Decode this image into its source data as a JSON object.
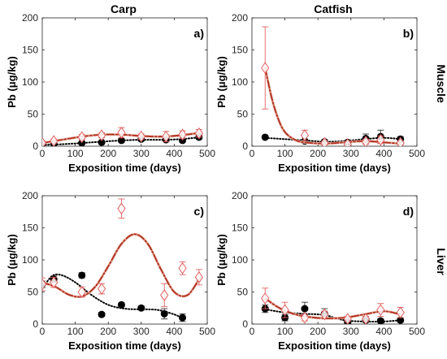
{
  "figure": {
    "column_titles": [
      "Carp",
      "Catfish"
    ],
    "row_labels": [
      "Muscle",
      "Liver"
    ]
  },
  "chart_data": [
    {
      "type": "scatter",
      "panel_label": "a)",
      "title": "Carp",
      "xlabel": "Exposition time (days)",
      "ylabel": "Pb (μg/kg)",
      "xlim": [
        0,
        500
      ],
      "ylim": [
        0,
        200
      ],
      "xticks": [
        0,
        100,
        200,
        300,
        400,
        500
      ],
      "yticks": [
        0,
        50,
        100,
        150,
        200
      ],
      "series": [
        {
          "marker": "filled-circle",
          "color": "#000000",
          "points": [
            {
              "x": 0,
              "y": 3,
              "err": 2
            },
            {
              "x": 35,
              "y": 4,
              "err": 2
            },
            {
              "x": 120,
              "y": 5,
              "err": 2
            },
            {
              "x": 180,
              "y": 6,
              "err": 2
            },
            {
              "x": 240,
              "y": 9,
              "err": 3
            },
            {
              "x": 300,
              "y": 11,
              "err": 3
            },
            {
              "x": 375,
              "y": 10,
              "err": 3
            },
            {
              "x": 425,
              "y": 9,
              "err": 3
            },
            {
              "x": 475,
              "y": 14,
              "err": 3
            }
          ],
          "fit": {
            "style": "dotted",
            "color": "#000000",
            "x": [
              0,
              60,
              120,
              180,
              240,
              300,
              360,
              420,
              480
            ],
            "y": [
              2,
              3,
              5,
              7,
              9,
              10,
              10,
              11,
              14
            ]
          }
        },
        {
          "marker": "open-diamond",
          "color": "#e06060",
          "points": [
            {
              "x": 0,
              "y": 5,
              "err": 3
            },
            {
              "x": 35,
              "y": 8,
              "err": 3
            },
            {
              "x": 120,
              "y": 14,
              "err": 4
            },
            {
              "x": 180,
              "y": 17,
              "err": 4
            },
            {
              "x": 240,
              "y": 21,
              "err": 8
            },
            {
              "x": 300,
              "y": 15,
              "err": 4
            },
            {
              "x": 375,
              "y": 15,
              "err": 8
            },
            {
              "x": 425,
              "y": 18,
              "err": 6
            },
            {
              "x": 475,
              "y": 20,
              "err": 6
            }
          ],
          "fit": {
            "style": "dash-dot",
            "color": "#b03020",
            "x": [
              0,
              60,
              120,
              180,
              240,
              300,
              360,
              420,
              480
            ],
            "y": [
              5,
              10,
              15,
              18,
              18,
              16,
              15,
              17,
              21
            ]
          }
        }
      ]
    },
    {
      "type": "scatter",
      "panel_label": "b)",
      "title": "Catfish",
      "row_label": "Muscle",
      "xlabel": "Exposition time (days)",
      "ylabel": "Pb (μg/kg)",
      "xlim": [
        0,
        500
      ],
      "ylim": [
        0,
        200
      ],
      "xticks": [
        0,
        100,
        200,
        300,
        400,
        500
      ],
      "yticks": [
        0,
        50,
        100,
        150,
        200
      ],
      "series": [
        {
          "marker": "filled-circle",
          "color": "#000000",
          "points": [
            {
              "x": 40,
              "y": 14,
              "err": 2
            },
            {
              "x": 160,
              "y": 8,
              "err": 3
            },
            {
              "x": 220,
              "y": 7,
              "err": 2
            },
            {
              "x": 290,
              "y": 6,
              "err": 2
            },
            {
              "x": 345,
              "y": 12,
              "err": 7
            },
            {
              "x": 390,
              "y": 15,
              "err": 10
            },
            {
              "x": 450,
              "y": 11,
              "err": 4
            }
          ],
          "fit": {
            "style": "dotted",
            "color": "#000000",
            "x": [
              40,
              100,
              160,
              220,
              280,
              340,
              400,
              450
            ],
            "y": [
              13,
              11,
              9,
              7,
              8,
              11,
              13,
              11
            ]
          }
        },
        {
          "marker": "open-diamond",
          "color": "#e06060",
          "points": [
            {
              "x": 40,
              "y": 122,
              "err": 64
            },
            {
              "x": 160,
              "y": 17,
              "err": 8
            },
            {
              "x": 220,
              "y": 5,
              "err": 3
            },
            {
              "x": 290,
              "y": 3,
              "err": 3
            },
            {
              "x": 345,
              "y": 7,
              "err": 4
            },
            {
              "x": 390,
              "y": 10,
              "err": 6
            },
            {
              "x": 450,
              "y": 5,
              "err": 3
            }
          ],
          "fit": {
            "style": "dash-dot",
            "color": "#b03020",
            "x": [
              40,
              60,
              80,
              100,
              130,
              160,
              220,
              280,
              340,
              400,
              450
            ],
            "y": [
              122,
              75,
              42,
              22,
              10,
              6,
              4,
              6,
              8,
              6,
              4
            ]
          }
        }
      ]
    },
    {
      "type": "scatter",
      "panel_label": "c)",
      "xlabel": "Exposition time (days)",
      "ylabel": "Pb (μg/kg)",
      "xlim": [
        0,
        500
      ],
      "ylim": [
        0,
        200
      ],
      "xticks": [
        0,
        100,
        200,
        300,
        400,
        500
      ],
      "yticks": [
        0,
        50,
        100,
        150,
        200
      ],
      "series": [
        {
          "marker": "filled-circle",
          "color": "#000000",
          "points": [
            {
              "x": 0,
              "y": 62,
              "err": 5
            },
            {
              "x": 35,
              "y": 70,
              "err": 5
            },
            {
              "x": 120,
              "y": 76,
              "err": 4
            },
            {
              "x": 180,
              "y": 15,
              "err": 3
            },
            {
              "x": 240,
              "y": 30,
              "err": 3
            },
            {
              "x": 300,
              "y": 25,
              "err": 3
            },
            {
              "x": 370,
              "y": 16,
              "err": 8
            },
            {
              "x": 425,
              "y": 10,
              "err": 6
            }
          ],
          "fit": {
            "style": "dotted",
            "color": "#000000",
            "x": [
              0,
              30,
              60,
              100,
              150,
              200,
              250,
              300,
              350,
              400,
              430
            ],
            "y": [
              55,
              75,
              76,
              65,
              45,
              30,
              24,
              23,
              22,
              15,
              8
            ]
          }
        },
        {
          "marker": "open-diamond",
          "color": "#e06060",
          "points": [
            {
              "x": 0,
              "y": 62,
              "err": 10
            },
            {
              "x": 35,
              "y": 65,
              "err": 8
            },
            {
              "x": 120,
              "y": 50,
              "err": 8
            },
            {
              "x": 180,
              "y": 55,
              "err": 8
            },
            {
              "x": 240,
              "y": 180,
              "err": 15
            },
            {
              "x": 370,
              "y": 45,
              "err": 18
            },
            {
              "x": 425,
              "y": 87,
              "err": 10
            },
            {
              "x": 475,
              "y": 73,
              "err": 12
            }
          ],
          "fit": {
            "style": "dash-dot",
            "color": "#b03020",
            "x": [
              0,
              40,
              80,
              120,
              160,
              200,
              240,
              280,
              320,
              360,
              400,
              440,
              475
            ],
            "y": [
              65,
              58,
              46,
              43,
              58,
              90,
              125,
              140,
              125,
              85,
              50,
              45,
              70
            ]
          }
        }
      ]
    },
    {
      "type": "scatter",
      "panel_label": "d)",
      "row_label": "Liver",
      "xlabel": "Exposition time (days)",
      "ylabel": "Pb (μg/kg)",
      "xlim": [
        0,
        500
      ],
      "ylim": [
        0,
        200
      ],
      "xticks": [
        0,
        100,
        200,
        300,
        400,
        500
      ],
      "yticks": [
        0,
        50,
        100,
        150,
        200
      ],
      "series": [
        {
          "marker": "filled-circle",
          "color": "#000000",
          "points": [
            {
              "x": 40,
              "y": 24,
              "err": 6
            },
            {
              "x": 100,
              "y": 10,
              "err": 5
            },
            {
              "x": 160,
              "y": 24,
              "err": 10
            },
            {
              "x": 220,
              "y": 16,
              "err": 8
            },
            {
              "x": 290,
              "y": 3,
              "err": 2
            },
            {
              "x": 345,
              "y": 6,
              "err": 3
            },
            {
              "x": 390,
              "y": 5,
              "err": 3
            },
            {
              "x": 450,
              "y": 6,
              "err": 3
            }
          ],
          "fit": {
            "style": "dotted",
            "color": "#000000",
            "x": [
              40,
              100,
              160,
              220,
              280,
              340,
              400,
              450
            ],
            "y": [
              23,
              18,
              16,
              14,
              6,
              4,
              4,
              6
            ]
          }
        },
        {
          "marker": "open-diamond",
          "color": "#e06060",
          "points": [
            {
              "x": 40,
              "y": 40,
              "err": 16
            },
            {
              "x": 100,
              "y": 22,
              "err": 12
            },
            {
              "x": 160,
              "y": 10,
              "err": 5
            },
            {
              "x": 220,
              "y": 15,
              "err": 5
            },
            {
              "x": 290,
              "y": 8,
              "err": 4
            },
            {
              "x": 345,
              "y": 8,
              "err": 4
            },
            {
              "x": 390,
              "y": 22,
              "err": 10
            },
            {
              "x": 450,
              "y": 18,
              "err": 8
            }
          ],
          "fit": {
            "style": "dash-dot",
            "color": "#b03020",
            "x": [
              40,
              80,
              120,
              160,
              220,
              280,
              340,
              400,
              450
            ],
            "y": [
              40,
              26,
              17,
              12,
              9,
              10,
              15,
              20,
              15
            ]
          }
        }
      ]
    }
  ]
}
